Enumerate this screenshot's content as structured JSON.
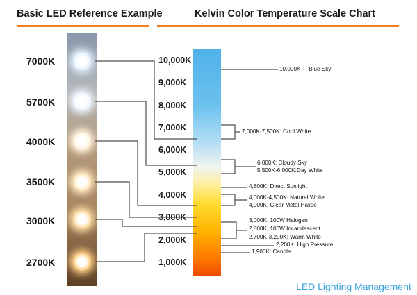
{
  "left_title": "Basic LED Reference Example",
  "right_title": "Kelvin Color Temperature Scale Chart",
  "led_labels": [
    "7000K",
    "5700K",
    "4000K",
    "3500K",
    "3000K",
    "2700K"
  ],
  "led_colors": [
    "#e6f2ff",
    "#eef6ff",
    "#fff3dc",
    "#ffe8bf",
    "#ffe0a8",
    "#ffd088"
  ],
  "scale_ticks": [
    "10,000K",
    "9,000K",
    "8,000K",
    "7,000K",
    "6,000K",
    "5,000K",
    "4,000K",
    "3,000K",
    "2,000K",
    "1,000K"
  ],
  "annotations": [
    "10,000K +: Blue Sky",
    "7,000K-7,500K: Cool White",
    "6,000K: Cloudy Sky",
    "5,500K-6,000K:Day White",
    "4,800K: Direct Sunlight",
    "4,000K-4,500K: Natural White",
    "4,000K: Clear Metal Halide",
    "3,000K: 100W Halogen",
    "2,800K: 100W Incandescent",
    "2,700K-3,200K: Warm White",
    "2,200K: High Pressure",
    "1,900K: Candle"
  ],
  "brand": "LED Lighting Management"
}
